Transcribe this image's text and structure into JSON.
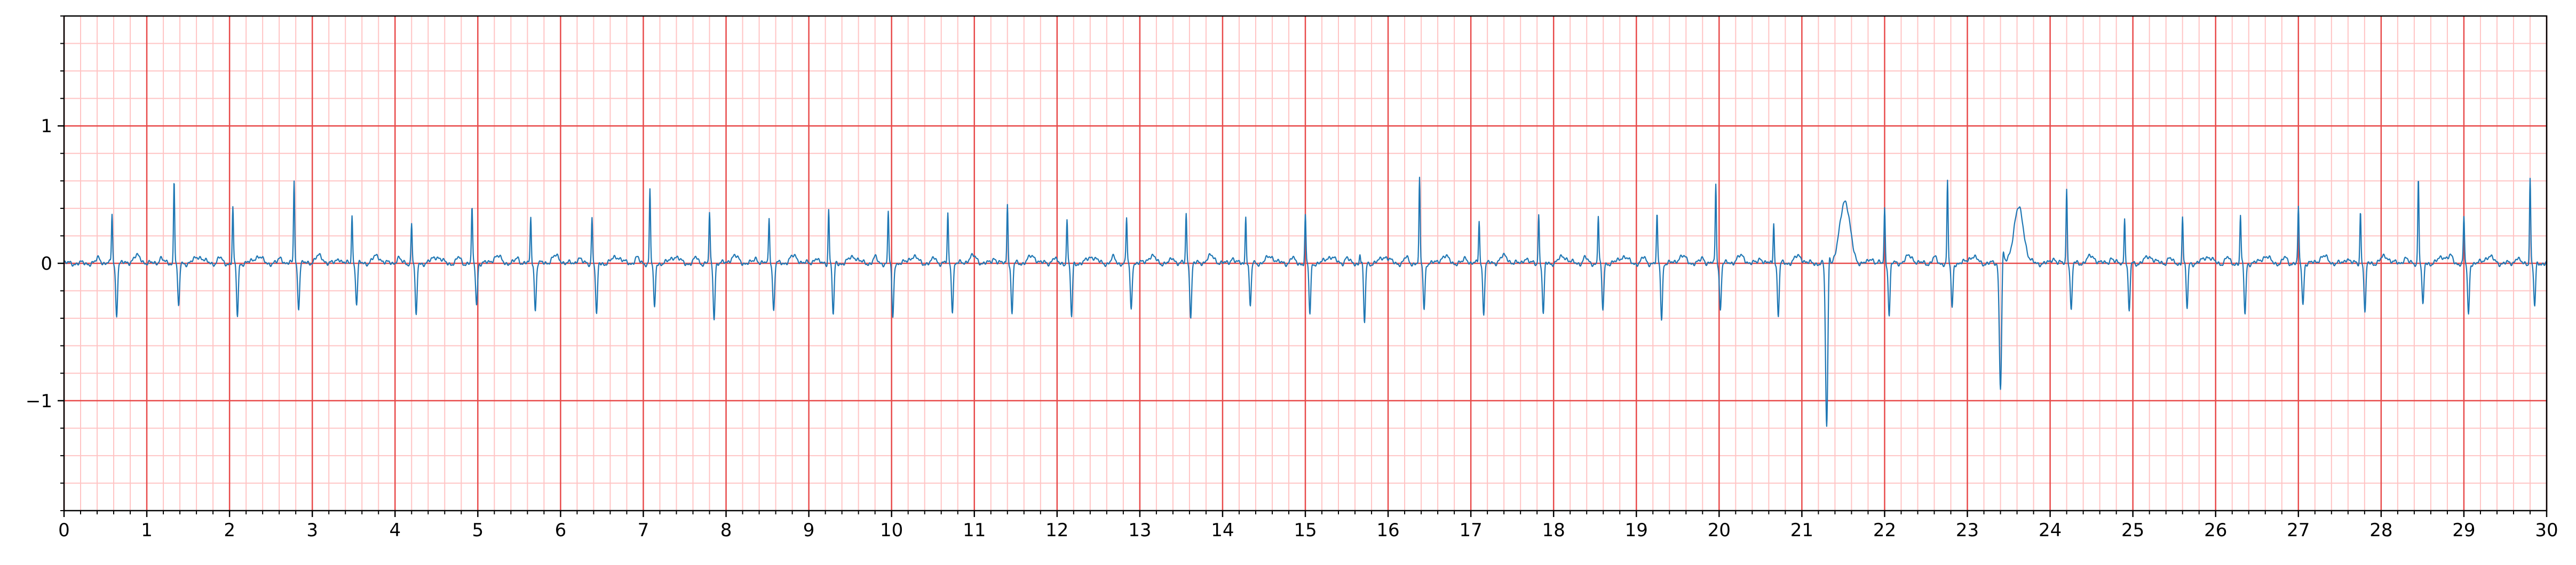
{
  "chart_data": {
    "type": "line",
    "title": "",
    "xlabel": "",
    "ylabel": "",
    "xlim": [
      0,
      30
    ],
    "ylim": [
      -1.8,
      1.8
    ],
    "x_ticks": [
      "0",
      "1",
      "2",
      "3",
      "4",
      "5",
      "6",
      "7",
      "8",
      "9",
      "10",
      "11",
      "12",
      "13",
      "14",
      "15",
      "16",
      "17",
      "18",
      "19",
      "20",
      "21",
      "22",
      "23",
      "24",
      "25",
      "26",
      "27",
      "28",
      "29",
      "30"
    ],
    "y_ticks": [
      {
        "value": 1,
        "label": "1"
      },
      {
        "value": 0,
        "label": "0"
      },
      {
        "value": -1,
        "label": "−1"
      }
    ],
    "grid": {
      "major_x": 1,
      "minor_x": 0.2,
      "major_y": 1,
      "minor_y": 0.2,
      "major_color": "#e84a4a",
      "minor_color": "#ffc4c4"
    },
    "line_color": "#1f77b4",
    "beats": [
      {
        "t": 0.58,
        "r": 0.36,
        "s": -0.38
      },
      {
        "t": 1.33,
        "r": 0.62,
        "s": -0.33
      },
      {
        "t": 2.04,
        "r": 0.4,
        "s": -0.38
      },
      {
        "t": 2.78,
        "r": 0.61,
        "s": -0.33
      },
      {
        "t": 3.48,
        "r": 0.36,
        "s": -0.3
      },
      {
        "t": 4.2,
        "r": 0.3,
        "s": -0.4
      },
      {
        "t": 4.93,
        "r": 0.4,
        "s": -0.3
      },
      {
        "t": 5.64,
        "r": 0.33,
        "s": -0.34
      },
      {
        "t": 6.38,
        "r": 0.34,
        "s": -0.39
      },
      {
        "t": 7.08,
        "r": 0.54,
        "s": -0.33
      },
      {
        "t": 7.8,
        "r": 0.36,
        "s": -0.4
      },
      {
        "t": 8.52,
        "r": 0.34,
        "s": -0.35
      },
      {
        "t": 9.24,
        "r": 0.4,
        "s": -0.38
      },
      {
        "t": 9.96,
        "r": 0.37,
        "s": -0.4
      },
      {
        "t": 10.68,
        "r": 0.35,
        "s": -0.34
      },
      {
        "t": 11.4,
        "r": 0.44,
        "s": -0.37
      },
      {
        "t": 12.12,
        "r": 0.32,
        "s": -0.4
      },
      {
        "t": 12.84,
        "r": 0.33,
        "s": -0.34
      },
      {
        "t": 13.56,
        "r": 0.36,
        "s": -0.39
      },
      {
        "t": 14.28,
        "r": 0.35,
        "s": -0.32
      },
      {
        "t": 15.0,
        "r": 0.34,
        "s": -0.37
      },
      {
        "t": 15.66,
        "r": 0.07,
        "s": -0.44
      },
      {
        "t": 16.38,
        "r": 0.6,
        "s": -0.33
      },
      {
        "t": 17.1,
        "r": 0.31,
        "s": -0.36
      },
      {
        "t": 17.82,
        "r": 0.36,
        "s": -0.38
      },
      {
        "t": 18.54,
        "r": 0.35,
        "s": -0.35
      },
      {
        "t": 19.25,
        "r": 0.34,
        "s": -0.4
      },
      {
        "t": 19.96,
        "r": 0.58,
        "s": -0.34
      },
      {
        "t": 20.66,
        "r": 0.3,
        "s": -0.38
      },
      {
        "t": 22.0,
        "r": 0.4,
        "s": -0.38
      },
      {
        "t": 22.76,
        "r": 0.59,
        "s": -0.33
      },
      {
        "t": 24.2,
        "r": 0.55,
        "s": -0.35
      },
      {
        "t": 24.9,
        "r": 0.34,
        "s": -0.36
      },
      {
        "t": 25.6,
        "r": 0.34,
        "s": -0.33
      },
      {
        "t": 26.3,
        "r": 0.34,
        "s": -0.37
      },
      {
        "t": 27.0,
        "r": 0.4,
        "s": -0.3
      },
      {
        "t": 27.75,
        "r": 0.38,
        "s": -0.36
      },
      {
        "t": 28.45,
        "r": 0.63,
        "s": -0.32
      },
      {
        "t": 29.0,
        "r": 0.33,
        "s": -0.38
      },
      {
        "t": 29.8,
        "r": 0.62,
        "s": -0.32
      }
    ],
    "ectopic_beats": [
      {
        "t": 21.3,
        "peak": 0.46,
        "trough": -1.19
      },
      {
        "t": 23.4,
        "peak": 0.4,
        "trough": -0.9
      }
    ]
  }
}
